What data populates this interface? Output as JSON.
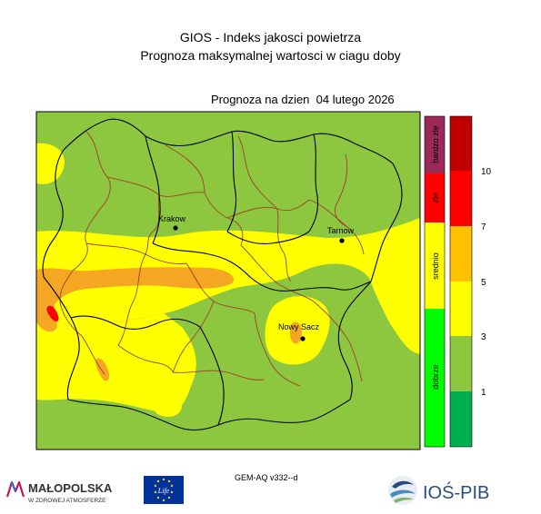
{
  "header": {
    "title": "GIOS - Indeks jakosci powietrza",
    "subtitle": "Prognoza maksymalnej wartosci w ciagu doby",
    "date_line": "Prognoza na dzien  04 lutego 2026"
  },
  "cities": [
    {
      "name": "Krakow"
    },
    {
      "name": "Tarnow"
    },
    {
      "name": "Nowy Sacz"
    }
  ],
  "legend_quality": [
    {
      "label": "bardzo zle",
      "color": "#9b2a5a"
    },
    {
      "label": "zle",
      "color": "#ff0000"
    },
    {
      "label": "srednio",
      "color": "#ffff00"
    },
    {
      "label": "dobrze",
      "color": "#00ff00"
    }
  ],
  "legend_scale": {
    "colors": [
      "#00b050",
      "#8dc63f",
      "#ffff00",
      "#ffc000",
      "#ff0000",
      "#c00000"
    ],
    "ticks": [
      "1",
      "3",
      "5",
      "7",
      "10"
    ]
  },
  "map_colors": {
    "green": "#8dc63f",
    "yellow": "#ffff00",
    "orange": "#f5a623",
    "red": "#ff0000",
    "border_powiat": "#a0402a",
    "border_voivodeship": "#000000"
  },
  "footer": {
    "model_label": "GEM-AQ v332--d",
    "malopolska_name": "MAŁOPOLSKA",
    "malopolska_tagline": "W ZDROWEJ ATMOSFERZE",
    "eu_life_text": "Life",
    "ios_name": "IOŚ-PIB"
  }
}
